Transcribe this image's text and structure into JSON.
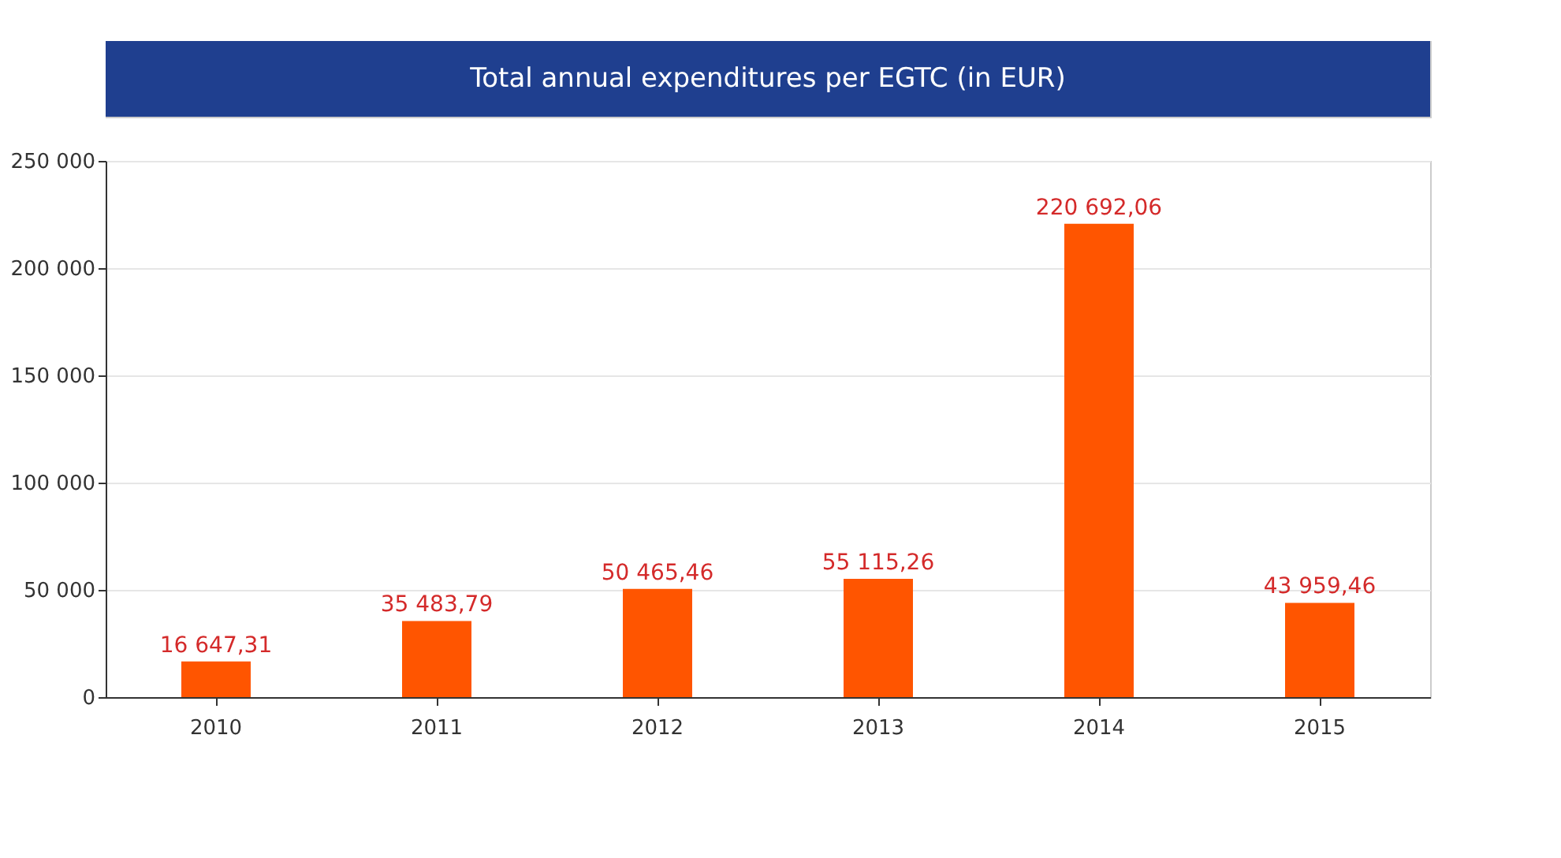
{
  "chart_data": {
    "type": "bar",
    "title": "Total annual expenditures per EGTC (in EUR)",
    "categories": [
      "2010",
      "2011",
      "2012",
      "2013",
      "2014",
      "2015"
    ],
    "values": [
      16647.31,
      35483.79,
      50465.46,
      55115.26,
      220692.06,
      43959.46
    ],
    "value_labels": [
      "16 647,31",
      "35 483,79",
      "50 465,46",
      "55 115,26",
      "220 692,06",
      "43 959,46"
    ],
    "color": "#ff5500",
    "ylim": [
      0,
      250000
    ],
    "yticks": [
      {
        "value": 0,
        "label": "0"
      },
      {
        "value": 50000,
        "label": "50 000"
      },
      {
        "value": 100000,
        "label": "100 000"
      },
      {
        "value": 150000,
        "label": "150 000"
      },
      {
        "value": 200000,
        "label": "200 000"
      },
      {
        "value": 250000,
        "label": "250 000"
      }
    ],
    "grid": "y"
  }
}
